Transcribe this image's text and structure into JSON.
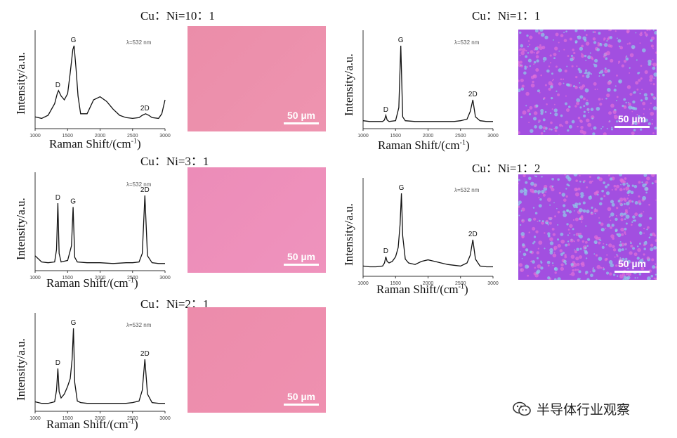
{
  "common": {
    "laser": "λ=532 nm",
    "ylabel": "Intensity/a.u.",
    "xlabel": "Raman Shift/(cm",
    "xlabel_sup": "-1",
    "xlabel_close": ")",
    "scale_label": "50 µm"
  },
  "watermark": {
    "icon": "wechat-icon",
    "text": "半导体行业观察"
  },
  "colors": {
    "micro_pink": "#ec90ab",
    "micro_pink2": "#ef8fba",
    "micro_purple": "#a24fe0",
    "micro_cyan": "#8fd0e8"
  },
  "chart_data": [
    {
      "type": "line",
      "title": "Cu：Ni=10：1",
      "xlabel": "Raman Shift/(cm-1)",
      "ylabel": "Intensity/a.u.",
      "xlim": [
        1000,
        3000
      ],
      "xticks": [
        1000,
        1500,
        2000,
        2500,
        3000
      ],
      "annotations": [
        {
          "text": "D",
          "x": 1350
        },
        {
          "text": "G",
          "x": 1590
        },
        {
          "text": "2D",
          "x": 2690
        }
      ],
      "x": [
        1000,
        1100,
        1200,
        1300,
        1340,
        1360,
        1400,
        1450,
        1500,
        1540,
        1580,
        1600,
        1630,
        1660,
        1700,
        1800,
        1900,
        2000,
        2100,
        2200,
        2300,
        2400,
        2500,
        2600,
        2650,
        2700,
        2750,
        2800,
        2900,
        2950,
        3000
      ],
      "y": [
        0.08,
        0.06,
        0.1,
        0.25,
        0.38,
        0.42,
        0.35,
        0.3,
        0.38,
        0.65,
        0.95,
        1.0,
        0.7,
        0.35,
        0.12,
        0.12,
        0.3,
        0.34,
        0.28,
        0.18,
        0.1,
        0.07,
        0.06,
        0.07,
        0.1,
        0.12,
        0.1,
        0.07,
        0.06,
        0.12,
        0.3
      ]
    },
    {
      "type": "line",
      "title": "Cu：Ni=3：1",
      "xlabel": "Raman Shift/(cm-1)",
      "ylabel": "Intensity/a.u.",
      "xlim": [
        1000,
        3000
      ],
      "xticks": [
        1000,
        1500,
        2000,
        2500,
        3000
      ],
      "annotations": [
        {
          "text": "D",
          "x": 1350
        },
        {
          "text": "G",
          "x": 1585
        },
        {
          "text": "2D",
          "x": 2690
        }
      ],
      "x": [
        1000,
        1100,
        1200,
        1300,
        1330,
        1350,
        1370,
        1400,
        1500,
        1560,
        1585,
        1610,
        1650,
        1800,
        2000,
        2200,
        2400,
        2500,
        2600,
        2650,
        2690,
        2730,
        2800,
        2900,
        3000
      ],
      "y": [
        0.12,
        0.04,
        0.03,
        0.04,
        0.2,
        0.8,
        0.15,
        0.04,
        0.06,
        0.25,
        0.75,
        0.1,
        0.04,
        0.03,
        0.03,
        0.02,
        0.03,
        0.03,
        0.04,
        0.15,
        0.9,
        0.12,
        0.03,
        0.02,
        0.02
      ]
    },
    {
      "type": "line",
      "title": "Cu：Ni=2：1",
      "xlabel": "Raman Shift/(cm-1)",
      "ylabel": "Intensity/a.u.",
      "xlim": [
        1000,
        3000
      ],
      "xticks": [
        1000,
        1500,
        2000,
        2500,
        3000
      ],
      "annotations": [
        {
          "text": "D",
          "x": 1350
        },
        {
          "text": "G",
          "x": 1590
        },
        {
          "text": "2D",
          "x": 2690
        }
      ],
      "x": [
        1000,
        1100,
        1200,
        1300,
        1330,
        1350,
        1370,
        1400,
        1450,
        1500,
        1540,
        1570,
        1590,
        1610,
        1650,
        1700,
        1800,
        2000,
        2200,
        2400,
        2500,
        2600,
        2650,
        2690,
        2730,
        2800,
        2900,
        3000
      ],
      "y": [
        0.05,
        0.03,
        0.03,
        0.05,
        0.2,
        0.48,
        0.18,
        0.1,
        0.15,
        0.25,
        0.35,
        0.6,
        1.0,
        0.3,
        0.06,
        0.04,
        0.03,
        0.03,
        0.03,
        0.03,
        0.04,
        0.06,
        0.2,
        0.6,
        0.15,
        0.04,
        0.03,
        0.03
      ]
    },
    {
      "type": "line",
      "title": "Cu：Ni=1：1",
      "xlabel": "Raman Shift/(cm-1)",
      "ylabel": "Intensity/a.u.",
      "xlim": [
        1000,
        3000
      ],
      "xticks": [
        1000,
        1500,
        2000,
        2500,
        3000
      ],
      "annotations": [
        {
          "text": "D",
          "x": 1350
        },
        {
          "text": "G",
          "x": 1580
        },
        {
          "text": "2D",
          "x": 2690
        }
      ],
      "x": [
        1000,
        1100,
        1200,
        1300,
        1330,
        1350,
        1370,
        1400,
        1500,
        1550,
        1580,
        1610,
        1650,
        1800,
        2000,
        2200,
        2400,
        2500,
        2600,
        2650,
        2690,
        2730,
        2800,
        2900,
        3000
      ],
      "y": [
        0.03,
        0.02,
        0.02,
        0.02,
        0.04,
        0.1,
        0.04,
        0.02,
        0.03,
        0.2,
        1.0,
        0.08,
        0.03,
        0.02,
        0.02,
        0.02,
        0.02,
        0.03,
        0.05,
        0.15,
        0.3,
        0.08,
        0.03,
        0.02,
        0.02
      ]
    },
    {
      "type": "line",
      "title": "Cu：Ni=1：2",
      "xlabel": "Raman Shift/(cm-1)",
      "ylabel": "Intensity/a.u.",
      "xlim": [
        1000,
        3000
      ],
      "xticks": [
        1000,
        1500,
        2000,
        2500,
        3000
      ],
      "annotations": [
        {
          "text": "D",
          "x": 1350
        },
        {
          "text": "G",
          "x": 1590
        },
        {
          "text": "2D",
          "x": 2690
        }
      ],
      "x": [
        1000,
        1100,
        1200,
        1300,
        1330,
        1350,
        1370,
        1400,
        1450,
        1500,
        1540,
        1570,
        1590,
        1610,
        1650,
        1700,
        1800,
        1900,
        2000,
        2100,
        2200,
        2300,
        2400,
        2500,
        2600,
        2650,
        2690,
        2730,
        2800,
        2900,
        3000
      ],
      "y": [
        0.06,
        0.05,
        0.05,
        0.06,
        0.1,
        0.18,
        0.12,
        0.1,
        0.12,
        0.18,
        0.3,
        0.6,
        1.0,
        0.45,
        0.15,
        0.1,
        0.08,
        0.12,
        0.14,
        0.12,
        0.1,
        0.08,
        0.07,
        0.06,
        0.1,
        0.2,
        0.4,
        0.15,
        0.06,
        0.05,
        0.05
      ]
    }
  ]
}
